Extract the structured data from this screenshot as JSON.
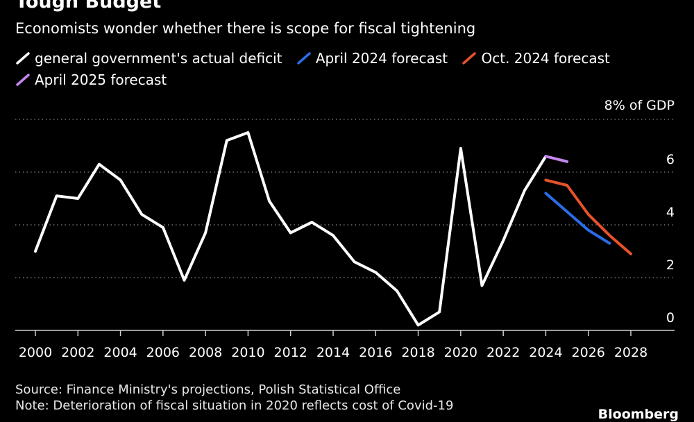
{
  "chart_data": {
    "type": "line",
    "title": "Tough Budget",
    "subtitle": "Economists wonder whether there is scope for fiscal tightening",
    "y_unit_label": "8% of GDP",
    "ylim": [
      0,
      8
    ],
    "yticks": [
      0,
      2,
      4,
      6
    ],
    "xlim": [
      2000,
      2028
    ],
    "xticks": [
      2000,
      2002,
      2004,
      2006,
      2008,
      2010,
      2012,
      2014,
      2016,
      2018,
      2020,
      2022,
      2024,
      2026,
      2028
    ],
    "grid": true,
    "legend_position": "top",
    "series": [
      {
        "name": "general government's actual deficit",
        "color": "#ffffff",
        "x": [
          2000,
          2001,
          2002,
          2003,
          2004,
          2005,
          2006,
          2007,
          2008,
          2009,
          2010,
          2011,
          2012,
          2013,
          2014,
          2015,
          2016,
          2017,
          2018,
          2019,
          2020,
          2021,
          2022,
          2023,
          2024
        ],
        "y": [
          3.0,
          5.1,
          5.0,
          6.3,
          5.7,
          4.4,
          3.9,
          1.9,
          3.7,
          7.2,
          7.5,
          4.9,
          3.7,
          4.1,
          3.6,
          2.6,
          2.2,
          1.5,
          0.2,
          0.7,
          6.9,
          1.7,
          3.4,
          5.3,
          6.6
        ]
      },
      {
        "name": "April 2024 forecast",
        "color": "#2a6de8",
        "x": [
          2024,
          2025,
          2026,
          2027
        ],
        "y": [
          5.2,
          4.5,
          3.8,
          3.3
        ]
      },
      {
        "name": "Oct. 2024 forecast",
        "color": "#e6522c",
        "x": [
          2024,
          2025,
          2026,
          2027,
          2028
        ],
        "y": [
          5.7,
          5.5,
          4.4,
          3.6,
          2.9
        ]
      },
      {
        "name": "April 2025 forecast",
        "color": "#c587f0",
        "x": [
          2024,
          2025
        ],
        "y": [
          6.6,
          6.4
        ]
      }
    ]
  },
  "footer": {
    "source": "Source: Finance Ministry's projections, Polish Statistical Office",
    "note": "Note: Deterioration of fiscal situation in 2020 reflects cost of Covid-19",
    "logo": "Bloomberg"
  }
}
